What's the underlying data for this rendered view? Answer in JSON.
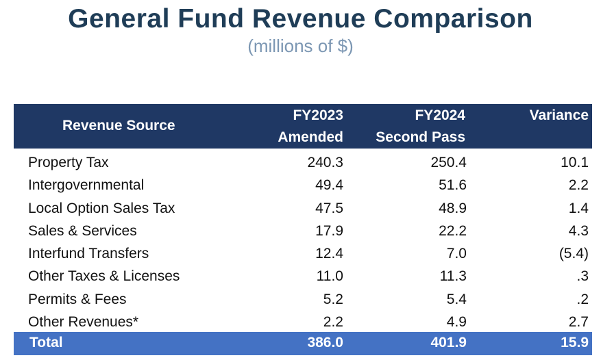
{
  "title": "General Fund Revenue Comparison",
  "subtitle": "(millions of $)",
  "chart_data": {
    "type": "table",
    "title": "General Fund Revenue Comparison",
    "subtitle": "(millions of $)",
    "columns": {
      "source": "Revenue Source",
      "fy2023": [
        "FY2023",
        "Amended"
      ],
      "fy2024": [
        "FY2024",
        "Second Pass"
      ],
      "variance": "Variance"
    },
    "rows": [
      {
        "source": "Property Tax",
        "fy2023": "240.3",
        "fy2024": "250.4",
        "variance": "10.1"
      },
      {
        "source": "Intergovernmental",
        "fy2023": "49.4",
        "fy2024": "51.6",
        "variance": "2.2"
      },
      {
        "source": "Local Option Sales Tax",
        "fy2023": "47.5",
        "fy2024": "48.9",
        "variance": "1.4"
      },
      {
        "source": "Sales & Services",
        "fy2023": "17.9",
        "fy2024": "22.2",
        "variance": "4.3"
      },
      {
        "source": "Interfund Transfers",
        "fy2023": "12.4",
        "fy2024": "7.0",
        "variance": "(5.4)"
      },
      {
        "source": "Other Taxes & Licenses",
        "fy2023": "11.0",
        "fy2024": "11.3",
        "variance": ".3"
      },
      {
        "source": "Permits & Fees",
        "fy2023": "5.2",
        "fy2024": "5.4",
        "variance": ".2"
      },
      {
        "source": "Other Revenues*",
        "fy2023": "2.2",
        "fy2024": "4.9",
        "variance": "2.7"
      }
    ],
    "total": {
      "source": "Total",
      "fy2023": "386.0",
      "fy2024": "401.9",
      "variance": "15.9"
    }
  },
  "colors": {
    "header": "#1f3864",
    "total": "#4472c4",
    "title": "#1f3d57",
    "subtitle": "#7c97b3"
  }
}
